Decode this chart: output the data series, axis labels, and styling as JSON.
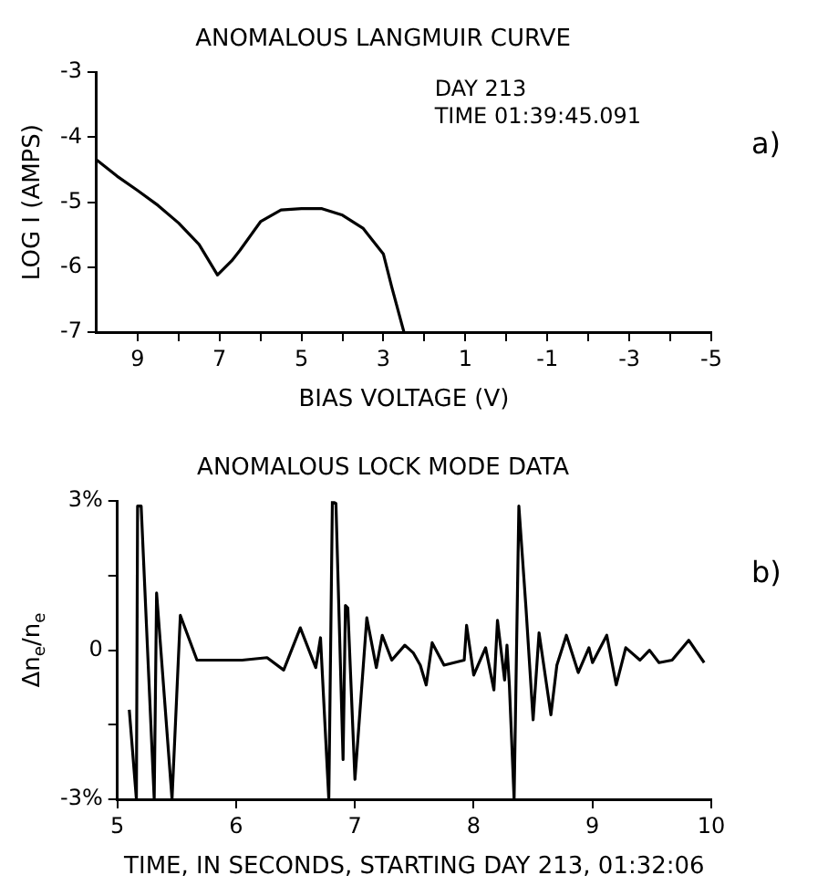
{
  "chart_data": [
    {
      "type": "line",
      "title": "ANOMALOUS LANGMUIR CURVE",
      "xlabel": "BIAS VOLTAGE (V)",
      "ylabel": "LOG I (AMPS)",
      "annotations": [
        "DAY 213",
        "TIME 01:39:45.091",
        "a)"
      ],
      "x": [
        10,
        9.5,
        9,
        8.5,
        8,
        7.5,
        7.05,
        6.7,
        6.5,
        6,
        5.5,
        5,
        4.5,
        4,
        3.5,
        3,
        2.8,
        2.5
      ],
      "series": [
        {
          "color": "#000000",
          "values": [
            -4.35,
            -4.6,
            -4.82,
            -5.05,
            -5.32,
            -5.65,
            -6.12,
            -5.9,
            -5.74,
            -5.3,
            -5.12,
            -5.1,
            -5.1,
            -5.2,
            -5.4,
            -5.8,
            -6.3,
            -7
          ]
        }
      ],
      "xlim": [
        10,
        -5
      ],
      "xticks": [
        9,
        {
          "value": 8,
          "label": null
        },
        7,
        {
          "value": 6,
          "label": null
        },
        5,
        {
          "value": 4,
          "label": null
        },
        3,
        {
          "value": 2,
          "label": null
        },
        1,
        {
          "value": 0,
          "label": null
        },
        -1,
        {
          "value": -2,
          "label": null
        },
        -3,
        {
          "value": -4,
          "label": null
        },
        -5
      ],
      "ylim": [
        -7,
        -3
      ],
      "yticks": [
        -7,
        -6,
        -5,
        -4,
        -3
      ],
      "grid": false,
      "legend": false,
      "marker": "none",
      "line_style": "solid"
    },
    {
      "type": "line",
      "title": "ANOMALOUS LOCK MODE DATA",
      "xlabel": "TIME, IN SECONDS, STARTING DAY 213, 01:32:06",
      "ylabel": "Δn$_{e}$/n$_{e}$",
      "annotations": [
        "b)"
      ],
      "x": [
        5.1,
        5.16,
        5.17,
        5.2,
        5.31,
        5.33,
        5.46,
        5.53,
        5.67,
        5.85,
        6.05,
        6.26,
        6.4,
        6.54,
        6.67,
        6.71,
        6.78,
        6.81,
        6.84,
        6.9,
        6.92,
        6.94,
        7.0,
        7.1,
        7.18,
        7.23,
        7.31,
        7.42,
        7.49,
        7.55,
        7.6,
        7.65,
        7.75,
        7.92,
        7.94,
        8.0,
        8.1,
        8.17,
        8.2,
        8.26,
        8.28,
        8.3,
        8.34,
        8.38,
        8.44,
        8.5,
        8.55,
        8.65,
        8.7,
        8.78,
        8.88,
        8.97,
        9.0,
        9.12,
        9.2,
        9.28,
        9.4,
        9.48,
        9.56,
        9.67,
        9.81,
        9.94
      ],
      "series": [
        {
          "color": "#000000",
          "values": [
            -1.2,
            -3,
            2.9,
            2.9,
            -3,
            1.15,
            -3,
            0.7,
            -0.2,
            -0.2,
            -0.2,
            -0.15,
            -0.4,
            0.45,
            -0.35,
            0.25,
            -3,
            3,
            2.95,
            -2.2,
            0.9,
            0.85,
            -2.6,
            0.65,
            -0.35,
            0.3,
            -0.2,
            0.1,
            -0.05,
            -0.3,
            -0.7,
            0.15,
            -0.3,
            -0.2,
            0.5,
            -0.5,
            0.05,
            -0.8,
            0.6,
            -0.6,
            0.1,
            -0.7,
            -3,
            2.9,
            0.85,
            -1.4,
            0.35,
            -1.3,
            -0.3,
            0.3,
            -0.45,
            0.05,
            -0.25,
            0.3,
            -0.7,
            0.05,
            -0.2,
            0,
            -0.25,
            -0.2,
            0.2,
            -0.25
          ]
        }
      ],
      "xlim": [
        5,
        10
      ],
      "xticks": [
        5,
        6,
        7,
        8,
        9,
        10
      ],
      "ylim": [
        -3,
        3
      ],
      "yticks": [
        {
          "value": -3,
          "label": "-3%"
        },
        {
          "value": -1.5,
          "label": null
        },
        0,
        {
          "value": 1.5,
          "label": null
        },
        {
          "value": 3,
          "label": "3%"
        }
      ],
      "grid": false,
      "legend": false,
      "marker": "none",
      "line_style": "solid"
    }
  ]
}
